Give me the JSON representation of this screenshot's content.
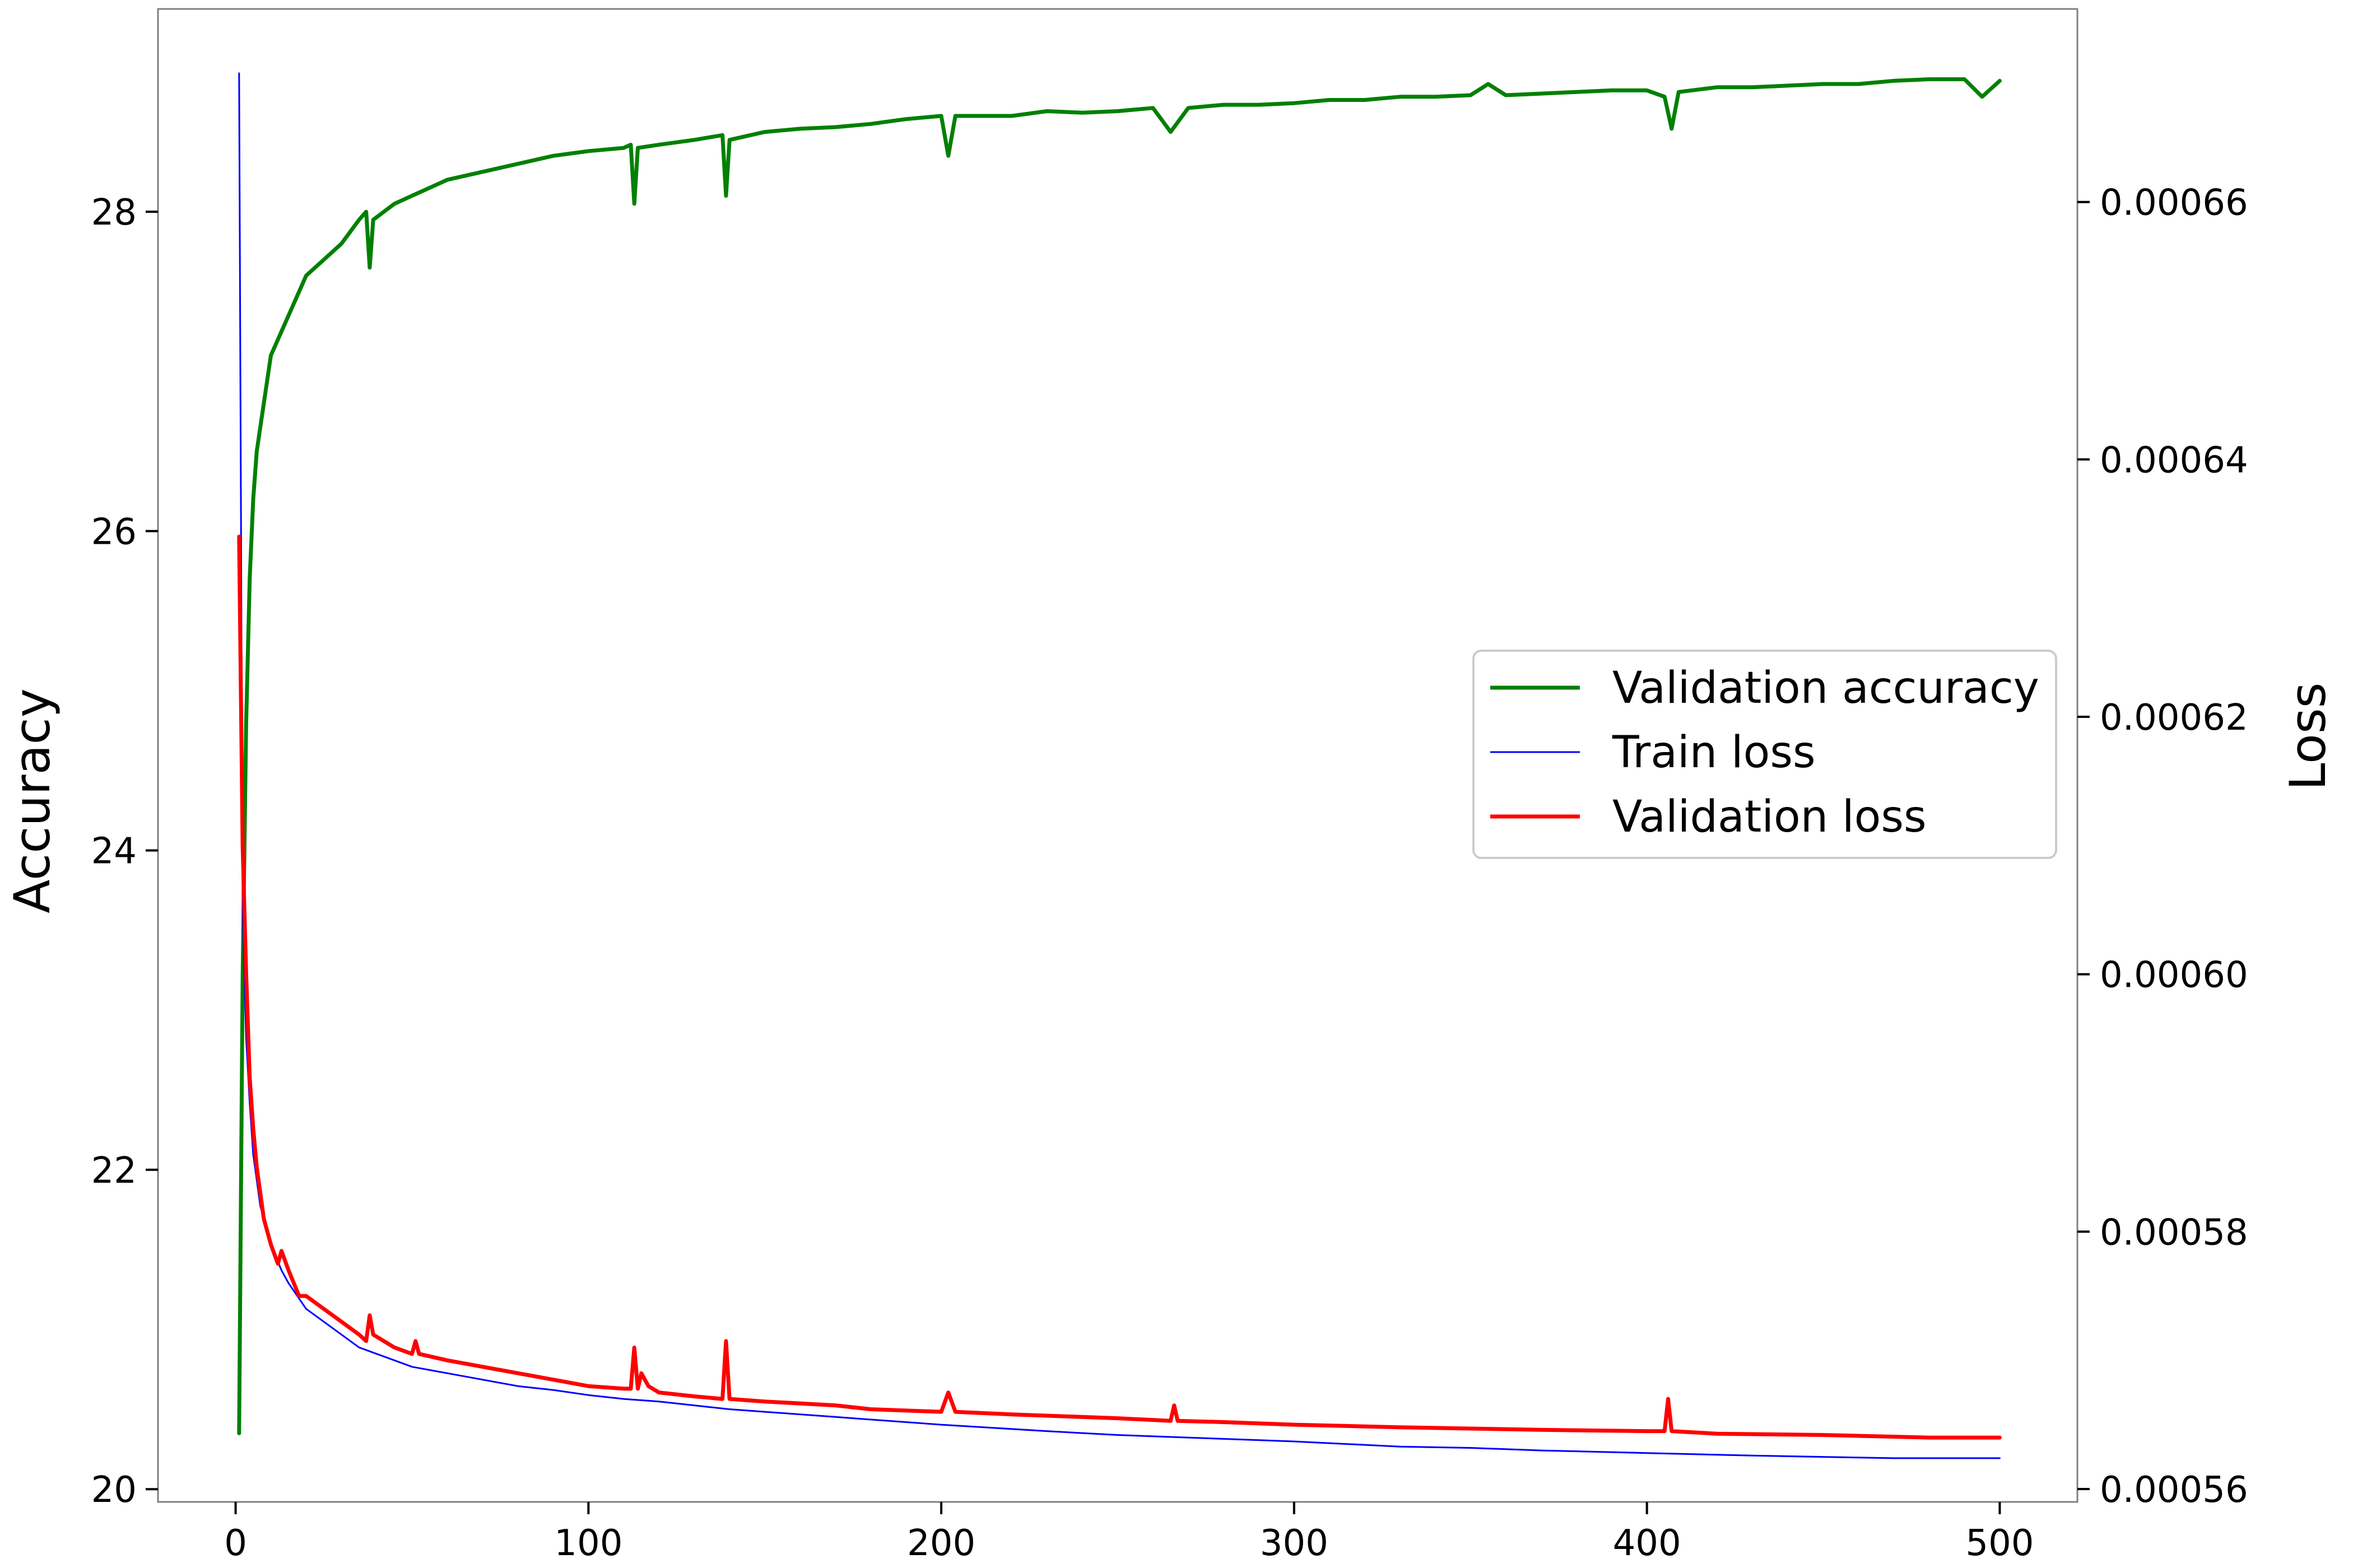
{
  "chart_data": {
    "type": "line",
    "xlabel": "",
    "ylabel_left": "Accuracy",
    "ylabel_right": "Loss",
    "xlim": [
      -22,
      522
    ],
    "ylim_left": [
      19.92,
      29.27
    ],
    "ylim_right": [
      0.000559,
      0.000675
    ],
    "x_ticks": [
      0,
      100,
      200,
      300,
      400,
      500
    ],
    "x_tick_labels": [
      "0",
      "100",
      "200",
      "300",
      "400",
      "500"
    ],
    "y_left_ticks": [
      20,
      22,
      24,
      26,
      28
    ],
    "y_left_tick_labels": [
      "20",
      "22",
      "24",
      "26",
      "28"
    ],
    "y_right_ticks": [
      0.00056,
      0.00058,
      0.0006,
      0.00062,
      0.00064,
      0.00066
    ],
    "y_right_tick_labels": [
      "0.00056",
      "0.00058",
      "0.00060",
      "0.00062",
      "0.00064",
      "0.00066"
    ],
    "grid": false,
    "legend_position": "center-right",
    "series": [
      {
        "name": "Validation accuracy",
        "axis": "left",
        "color": "#008000",
        "points": [
          [
            1,
            20.35
          ],
          [
            2,
            23.2
          ],
          [
            3,
            24.8
          ],
          [
            4,
            25.7
          ],
          [
            5,
            26.2
          ],
          [
            6,
            26.5
          ],
          [
            8,
            26.8
          ],
          [
            10,
            27.1
          ],
          [
            12,
            27.2
          ],
          [
            15,
            27.35
          ],
          [
            18,
            27.5
          ],
          [
            20,
            27.6
          ],
          [
            25,
            27.7
          ],
          [
            30,
            27.8
          ],
          [
            35,
            27.95
          ],
          [
            37,
            28.0
          ],
          [
            38,
            27.65
          ],
          [
            39,
            27.95
          ],
          [
            45,
            28.05
          ],
          [
            50,
            28.1
          ],
          [
            60,
            28.2
          ],
          [
            70,
            28.25
          ],
          [
            80,
            28.3
          ],
          [
            90,
            28.35
          ],
          [
            100,
            28.38
          ],
          [
            110,
            28.4
          ],
          [
            112,
            28.42
          ],
          [
            113,
            28.05
          ],
          [
            114,
            28.4
          ],
          [
            120,
            28.42
          ],
          [
            130,
            28.45
          ],
          [
            138,
            28.48
          ],
          [
            139,
            28.1
          ],
          [
            140,
            28.45
          ],
          [
            150,
            28.5
          ],
          [
            160,
            28.52
          ],
          [
            170,
            28.53
          ],
          [
            180,
            28.55
          ],
          [
            190,
            28.58
          ],
          [
            200,
            28.6
          ],
          [
            202,
            28.35
          ],
          [
            204,
            28.6
          ],
          [
            210,
            28.6
          ],
          [
            220,
            28.6
          ],
          [
            230,
            28.63
          ],
          [
            240,
            28.62
          ],
          [
            250,
            28.63
          ],
          [
            260,
            28.65
          ],
          [
            265,
            28.5
          ],
          [
            270,
            28.65
          ],
          [
            280,
            28.67
          ],
          [
            290,
            28.67
          ],
          [
            300,
            28.68
          ],
          [
            310,
            28.7
          ],
          [
            320,
            28.7
          ],
          [
            330,
            28.72
          ],
          [
            340,
            28.72
          ],
          [
            350,
            28.73
          ],
          [
            355,
            28.8
          ],
          [
            360,
            28.73
          ],
          [
            370,
            28.74
          ],
          [
            380,
            28.75
          ],
          [
            390,
            28.76
          ],
          [
            400,
            28.76
          ],
          [
            405,
            28.72
          ],
          [
            407,
            28.52
          ],
          [
            409,
            28.75
          ],
          [
            420,
            28.78
          ],
          [
            430,
            28.78
          ],
          [
            440,
            28.79
          ],
          [
            450,
            28.8
          ],
          [
            460,
            28.8
          ],
          [
            470,
            28.82
          ],
          [
            480,
            28.83
          ],
          [
            490,
            28.83
          ],
          [
            495,
            28.72
          ],
          [
            500,
            28.82
          ]
        ]
      },
      {
        "name": "Train loss",
        "axis": "right",
        "color": "#0000ff",
        "points": [
          [
            1,
            0.00067
          ],
          [
            2,
            0.000605
          ],
          [
            3,
            0.000595
          ],
          [
            4,
            0.00059
          ],
          [
            5,
            0.000586
          ],
          [
            7,
            0.000582
          ],
          [
            10,
            0.000579
          ],
          [
            13,
            0.000577
          ],
          [
            15,
            0.000576
          ],
          [
            20,
            0.000574
          ],
          [
            25,
            0.000573
          ],
          [
            30,
            0.000572
          ],
          [
            35,
            0.000571
          ],
          [
            40,
            0.0005705
          ],
          [
            45,
            0.00057
          ],
          [
            50,
            0.0005695
          ],
          [
            60,
            0.000569
          ],
          [
            70,
            0.0005685
          ],
          [
            80,
            0.000568
          ],
          [
            90,
            0.0005677
          ],
          [
            100,
            0.0005673
          ],
          [
            110,
            0.000567
          ],
          [
            120,
            0.0005668
          ],
          [
            130,
            0.0005665
          ],
          [
            140,
            0.0005662
          ],
          [
            150,
            0.000566
          ],
          [
            170,
            0.0005656
          ],
          [
            200,
            0.000565
          ],
          [
            230,
            0.0005645
          ],
          [
            250,
            0.0005642
          ],
          [
            270,
            0.000564
          ],
          [
            300,
            0.0005637
          ],
          [
            330,
            0.0005633
          ],
          [
            350,
            0.0005632
          ],
          [
            370,
            0.000563
          ],
          [
            400,
            0.0005628
          ],
          [
            430,
            0.0005626
          ],
          [
            450,
            0.0005625
          ],
          [
            470,
            0.0005624
          ],
          [
            490,
            0.0005624
          ],
          [
            500,
            0.0005624
          ]
        ]
      },
      {
        "name": "Validation loss",
        "axis": "right",
        "color": "#ff0000",
        "points": [
          [
            1,
            0.000634
          ],
          [
            2,
            0.00061
          ],
          [
            3,
            0.0006
          ],
          [
            4,
            0.000592
          ],
          [
            5,
            0.000588
          ],
          [
            6,
            0.000585
          ],
          [
            8,
            0.000581
          ],
          [
            10,
            0.000579
          ],
          [
            12,
            0.0005775
          ],
          [
            13,
            0.0005785
          ],
          [
            15,
            0.000577
          ],
          [
            18,
            0.000575
          ],
          [
            20,
            0.000575
          ],
          [
            25,
            0.000574
          ],
          [
            30,
            0.000573
          ],
          [
            35,
            0.000572
          ],
          [
            37,
            0.0005715
          ],
          [
            38,
            0.0005735
          ],
          [
            39,
            0.000572
          ],
          [
            45,
            0.000571
          ],
          [
            50,
            0.0005705
          ],
          [
            51,
            0.0005715
          ],
          [
            52,
            0.0005705
          ],
          [
            60,
            0.00057
          ],
          [
            70,
            0.0005695
          ],
          [
            80,
            0.000569
          ],
          [
            90,
            0.0005685
          ],
          [
            100,
            0.000568
          ],
          [
            110,
            0.0005678
          ],
          [
            112,
            0.0005678
          ],
          [
            113,
            0.000571
          ],
          [
            114,
            0.0005678
          ],
          [
            115,
            0.000569
          ],
          [
            117,
            0.000568
          ],
          [
            120,
            0.0005675
          ],
          [
            130,
            0.0005672
          ],
          [
            138,
            0.000567
          ],
          [
            139,
            0.0005715
          ],
          [
            140,
            0.000567
          ],
          [
            150,
            0.0005668
          ],
          [
            170,
            0.0005665
          ],
          [
            180,
            0.0005662
          ],
          [
            200,
            0.000566
          ],
          [
            202,
            0.0005675
          ],
          [
            204,
            0.000566
          ],
          [
            220,
            0.0005658
          ],
          [
            250,
            0.0005655
          ],
          [
            265,
            0.0005653
          ],
          [
            266,
            0.0005665
          ],
          [
            267,
            0.0005653
          ],
          [
            280,
            0.0005652
          ],
          [
            300,
            0.000565
          ],
          [
            330,
            0.0005648
          ],
          [
            350,
            0.0005647
          ],
          [
            370,
            0.0005646
          ],
          [
            400,
            0.0005645
          ],
          [
            405,
            0.0005645
          ],
          [
            406,
            0.000567
          ],
          [
            407,
            0.0005645
          ],
          [
            420,
            0.0005643
          ],
          [
            450,
            0.0005642
          ],
          [
            480,
            0.000564
          ],
          [
            500,
            0.000564
          ]
        ]
      }
    ]
  }
}
